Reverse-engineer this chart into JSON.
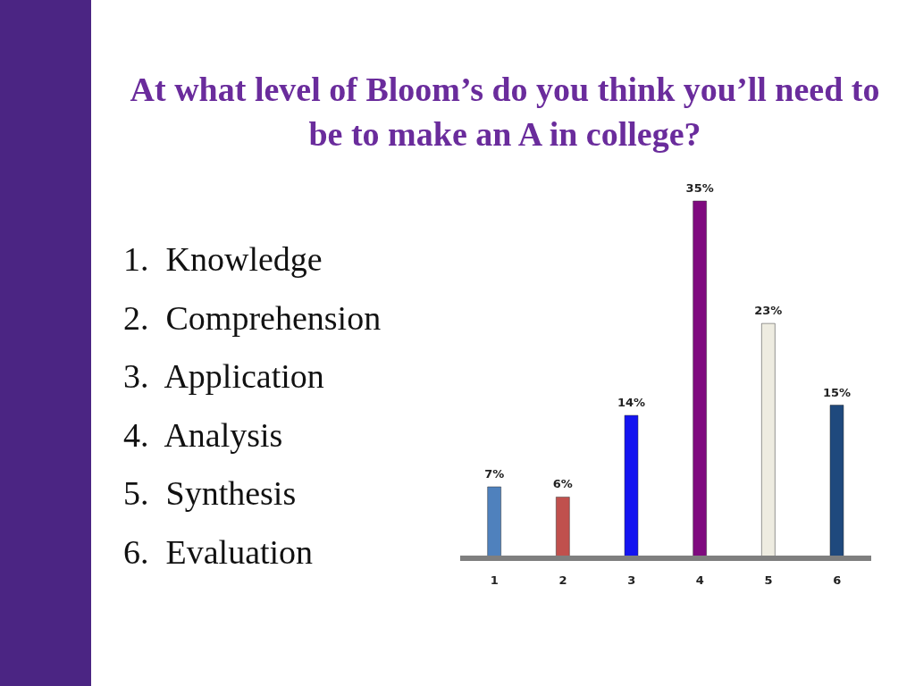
{
  "chart_data": {
    "type": "bar",
    "title": "At what level of Bloom’s do you think you’ll need to be to make an A in college?",
    "annotations": [
      "1.  Knowledge",
      "2.  Comprehension",
      "3.  Application",
      "4.  Analysis",
      "5.  Synthesis",
      "6.  Evaluation"
    ],
    "categories": [
      "1",
      "2",
      "3",
      "4",
      "5",
      "6"
    ],
    "values": [
      7,
      6,
      14,
      35,
      23,
      15
    ],
    "colors": [
      "#4f81bd",
      "#c0504d",
      "#1414f0",
      "#7f0a7f",
      "#eeece1",
      "#1f497d"
    ],
    "value_labels": [
      "7%",
      "6%",
      "14%",
      "35%",
      "23%",
      "15%"
    ]
  }
}
